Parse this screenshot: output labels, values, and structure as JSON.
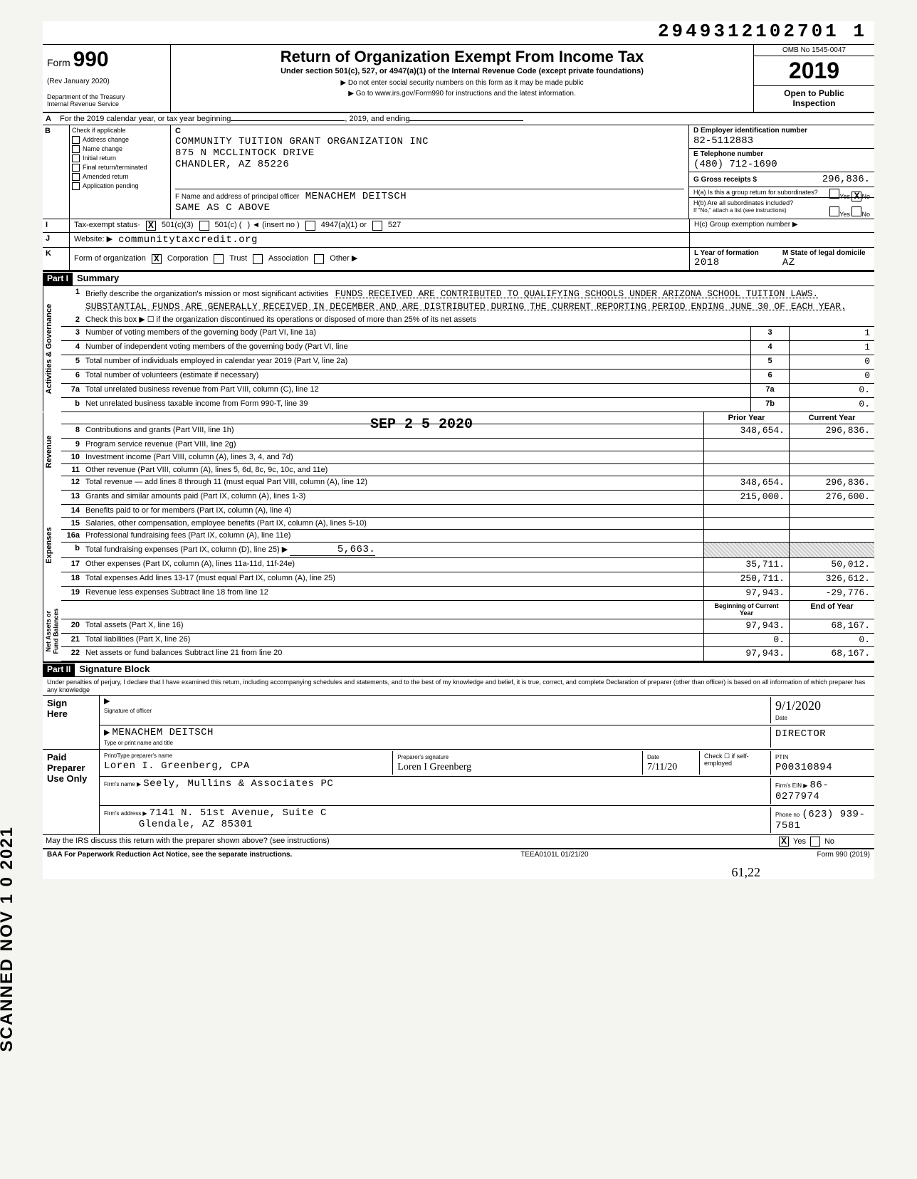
{
  "doc_id": "2949312102701 1",
  "form": {
    "number": "990",
    "prefix": "Form",
    "rev": "(Rev  January 2020)",
    "dept": "Department of the Treasury\nInternal Revenue Service",
    "title": "Return of Organization Exempt From Income Tax",
    "subtitle": "Under section 501(c), 527, or 4947(a)(1) of the Internal Revenue Code (except private foundations)",
    "note1": "▶ Do not enter social security numbers on this form as it may be made public",
    "note2": "▶ Go to www.irs.gov/Form990 for instructions and the latest information.",
    "omb": "OMB No 1545-0047",
    "year": "2019",
    "open": "Open to Public\nInspection"
  },
  "row_a": {
    "label": "A",
    "text": "For the 2019 calendar year, or tax year beginning",
    "mid": ", 2019, and ending"
  },
  "section_b": {
    "label": "B",
    "check_label": "Check if applicable",
    "c_label": "C",
    "items": [
      "Address change",
      "Name change",
      "Initial return",
      "Final return/terminated",
      "Amended return",
      "Application pending"
    ],
    "org_name": "COMMUNITY TUITION GRANT ORGANIZATION INC",
    "addr1": "875 N MCCLINTOCK DRIVE",
    "addr2": "CHANDLER, AZ 85226",
    "f_label": "F  Name and address of principal officer",
    "officer": "MENACHEM   DEITSCH",
    "officer_addr": "Same As C Above"
  },
  "col_d": {
    "d_label": "D  Employer identification number",
    "ein": "82-5112883",
    "e_label": "E  Telephone number",
    "phone": "(480) 712-1690",
    "g_label": "G  Gross receipts $",
    "gross": "296,836.",
    "ha_label": "H(a) Is this a group return for subordinates?",
    "hb_label": "H(b) Are all subordinates included?",
    "hb_note": "If \"No,\" attach a list (see instructions)",
    "hc_label": "H(c) Group exemption number ▶",
    "yes": "Yes",
    "no": "No",
    "ha_ans": "X"
  },
  "line_i": {
    "lab": "I",
    "text": "Tax-exempt status·",
    "c3": "501(c)(3)",
    "c": "501(c) (",
    "ins": ")  ◄  (insert no )",
    "a1": "4947(a)(1) or",
    "a2": "527",
    "c3_x": "X"
  },
  "line_j": {
    "lab": "J",
    "text": "Website: ▶",
    "val": "communitytaxcredit.org"
  },
  "line_k": {
    "lab": "K",
    "text": "Form of organization",
    "opts": [
      "Corporation",
      "Trust",
      "Association",
      "Other ▶"
    ],
    "corp_x": "X",
    "yof_label": "L Year of formation",
    "yof": "2018",
    "dom_label": "M State of legal domicile",
    "dom": "AZ"
  },
  "part1": {
    "hdr": "Part I",
    "title": "Summary"
  },
  "mission": {
    "n": "1",
    "label": "Briefly describe the organization's mission or most significant activities",
    "text": "FUNDS RECEIVED ARE CONTRIBUTED TO QUALIFYING SCHOOLS UNDER ARIZONA SCHOOL TUITION LAWS.  SUBSTANTIAL FUNDS ARE GENERALLY RECEIVED IN DECEMBER AND ARE DISTRIBUTED DURING THE CURRENT REPORTING PERIOD ENDING JUNE 30 OF EACH YEAR."
  },
  "gov_lines": [
    {
      "n": "2",
      "t": "Check this box ▶ ☐  if the organization discontinued its operations or disposed of more than 25% of its net assets"
    },
    {
      "n": "3",
      "t": "Number of voting members of the governing body (Part VI, line 1a)",
      "box": "3",
      "v": "1"
    },
    {
      "n": "4",
      "t": "Number of independent voting members of the governing body (Part VI, line",
      "box": "4",
      "v": "1"
    },
    {
      "n": "5",
      "t": "Total number of individuals employed in calendar year 2019 (Part V, line 2a)",
      "box": "5",
      "v": "0"
    },
    {
      "n": "6",
      "t": "Total number of volunteers (estimate if necessary)",
      "box": "6",
      "v": "0"
    },
    {
      "n": "7a",
      "t": "Total unrelated business revenue from Part VIII, column (C), line 12",
      "box": "7a",
      "v": "0."
    },
    {
      "n": "b",
      "t": "Net unrelated business taxable income from Form 990-T, line 39",
      "box": "7b",
      "v": "0."
    }
  ],
  "stamp": "SEP 2 5 2020",
  "rev_hdr": {
    "py": "Prior Year",
    "cy": "Current Year"
  },
  "revenue": [
    {
      "n": "8",
      "t": "Contributions and grants (Part VIII, line 1h)",
      "py": "348,654.",
      "cy": "296,836."
    },
    {
      "n": "9",
      "t": "Program service revenue (Part VIII, line 2g)",
      "py": "",
      "cy": ""
    },
    {
      "n": "10",
      "t": "Investment income (Part VIII, column (A), lines 3, 4, and 7d)",
      "py": "",
      "cy": ""
    },
    {
      "n": "11",
      "t": "Other revenue (Part VIII, column (A), lines 5, 6d, 8c, 9c, 10c, and 11e)",
      "py": "",
      "cy": ""
    },
    {
      "n": "12",
      "t": "Total revenue — add lines 8 through 11 (must equal Part VIII, column (A), line 12)",
      "py": "348,654.",
      "cy": "296,836."
    }
  ],
  "expenses": [
    {
      "n": "13",
      "t": "Grants and similar amounts paid (Part IX, column (A), lines 1-3)",
      "py": "215,000.",
      "cy": "276,600."
    },
    {
      "n": "14",
      "t": "Benefits paid to or for members (Part IX, column (A), line 4)",
      "py": "",
      "cy": ""
    },
    {
      "n": "15",
      "t": "Salaries, other compensation, employee benefits (Part IX, column (A), lines 5-10)",
      "py": "",
      "cy": ""
    },
    {
      "n": "16a",
      "t": "Professional fundraising fees (Part IX, column (A), line 11e)",
      "py": "",
      "cy": ""
    },
    {
      "n": "b",
      "t": "Total fundraising expenses (Part IX, column (D), line 25) ▶",
      "inline": "5,663.",
      "shade": true
    },
    {
      "n": "17",
      "t": "Other expenses (Part IX, column (A), lines 11a-11d, 11f-24e)",
      "py": "35,711.",
      "cy": "50,012."
    },
    {
      "n": "18",
      "t": "Total expenses  Add lines 13-17 (must equal Part IX, column (A), line 25)",
      "py": "250,711.",
      "cy": "326,612."
    },
    {
      "n": "19",
      "t": "Revenue less expenses  Subtract line 18 from line 12",
      "py": "97,943.",
      "cy": "-29,776."
    }
  ],
  "na_hdr": {
    "py": "Beginning of Current Year",
    "cy": "End of Year"
  },
  "netassets": [
    {
      "n": "20",
      "t": "Total assets (Part X, line 16)",
      "py": "97,943.",
      "cy": "68,167."
    },
    {
      "n": "21",
      "t": "Total liabilities (Part X, line 26)",
      "py": "0.",
      "cy": "0."
    },
    {
      "n": "22",
      "t": "Net assets or fund balances  Subtract line 21 from line 20",
      "py": "97,943.",
      "cy": "68,167."
    }
  ],
  "part2": {
    "hdr": "Part II",
    "title": "Signature Block",
    "perjury": "Under penalties of perjury, I declare that I have examined this return, including accompanying schedules and statements, and to the best of my knowledge and belief, it is true, correct, and complete Declaration of preparer (other than officer) is based on all information of which preparer has any knowledge"
  },
  "sign": {
    "here": "Sign\nHere",
    "sig_label": "Signature of officer",
    "date_label": "Date",
    "date_hand": "9/1/2020",
    "name": "MENACHEM  DEITSCH",
    "title": "Director",
    "type_label": "Type or print name and title"
  },
  "paid": {
    "label": "Paid\nPreparer\nUse Only",
    "cols": [
      "Print/Type preparer's name",
      "Preparer's signature",
      "Date"
    ],
    "name": "Loren I. Greenberg, CPA",
    "sig": "Loren I Greenberg",
    "date": "7/11/20",
    "check_label": "Check ☐ if self-employed",
    "ptin_label": "PTIN",
    "ptin": "P00310894",
    "firm_label": "Firm's name ▶",
    "firm": "Seely, Mullins & Associates PC",
    "addr_label": "Firm's address ▶",
    "addr1": "7141 N. 51st Avenue, Suite C",
    "addr2": "Glendale, AZ 85301",
    "ein_label": "Firm's EIN ▶",
    "ein": "86-0277974",
    "phone_label": "Phone no",
    "phone": "(623) 939-7581"
  },
  "discuss": {
    "q": "May the IRS discuss this return with the preparer shown above? (see instructions)",
    "yes": "Yes",
    "no": "No",
    "ans": "X"
  },
  "footer": {
    "baa": "BAA  For Paperwork Reduction Act Notice, see the separate instructions.",
    "code": "TEEA0101L 01/21/20",
    "form": "Form 990 (2019)"
  },
  "hand_bottom": "61,22",
  "scanned": "SCANNED NOV 1 0 2021",
  "vtabs": {
    "gov": "Activities & Governance",
    "rev": "Revenue",
    "exp": "Expenses",
    "na": "Net Assets or\nFund Balances"
  }
}
